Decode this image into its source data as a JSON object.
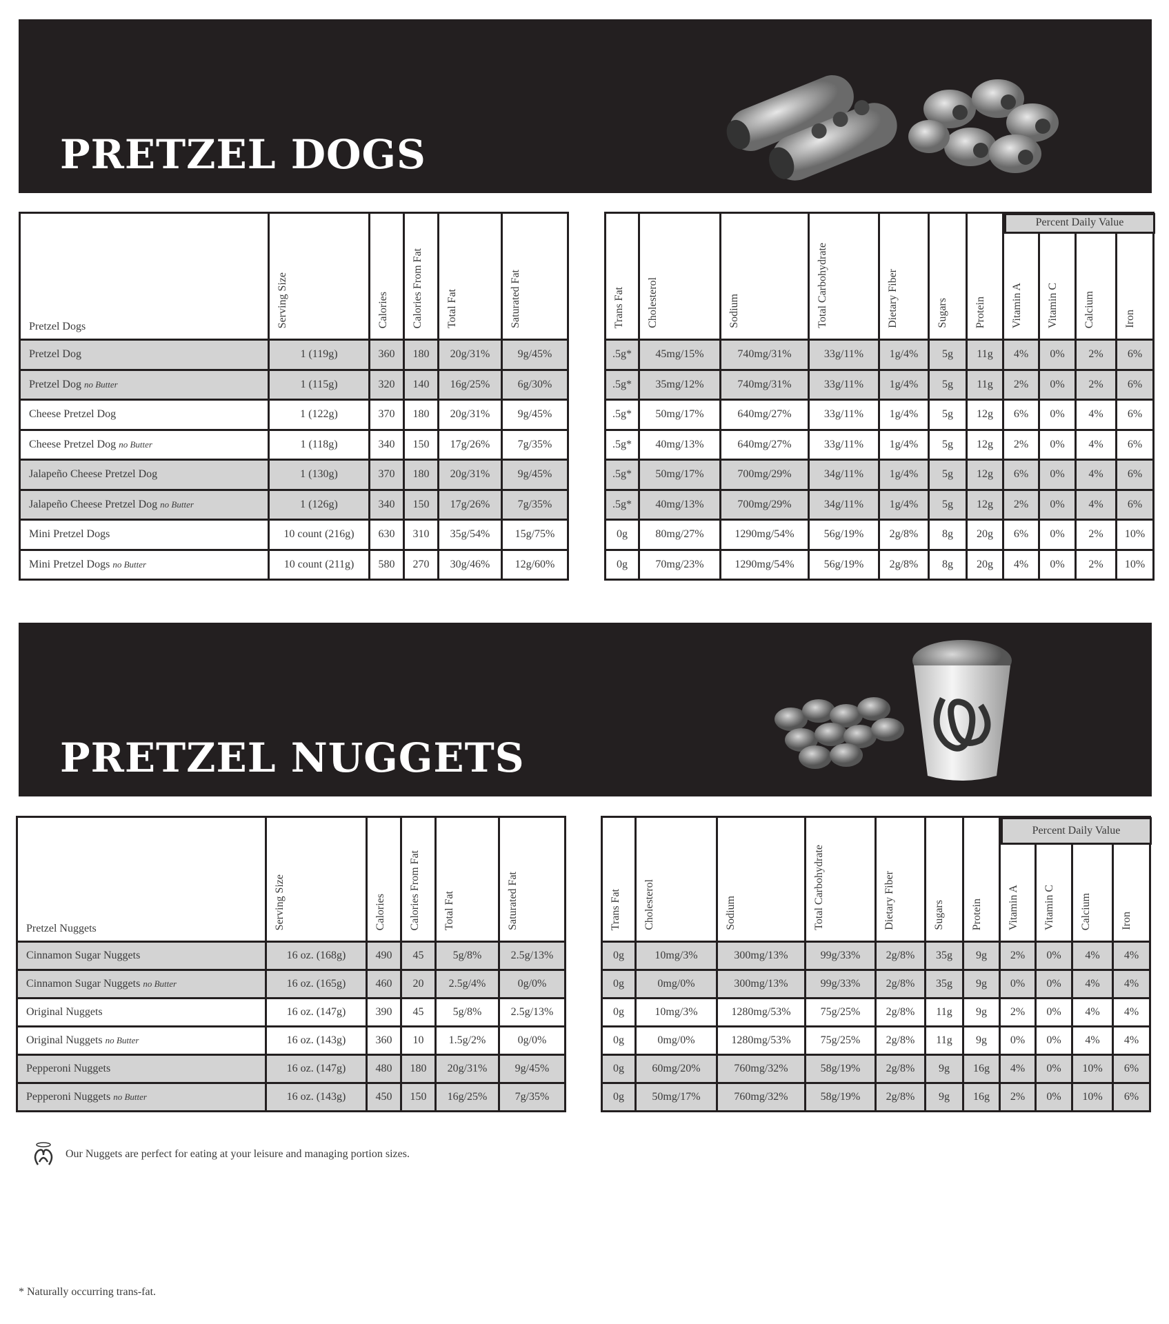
{
  "sections": [
    {
      "title": "PRETZEL DOGS",
      "name_header": "Pretzel Dogs",
      "percent_daily_value": "Percent Daily Value",
      "left_columns": [
        "Serving Size",
        "Calories",
        "Calories From Fat",
        "Total Fat",
        "Saturated Fat"
      ],
      "right_columns": [
        "Trans Fat",
        "Cholesterol",
        "Sodium",
        "Total Carbohydrate",
        "Dietary Fiber",
        "Sugars",
        "Protein",
        "Vitamin A",
        "Vitamin C",
        "Calcium",
        "Iron"
      ],
      "rows": [
        {
          "name": "Pretzel Dog",
          "suffix": "",
          "left": [
            "1 (119g)",
            "360",
            "180",
            "20g/31%",
            "9g/45%"
          ],
          "right": [
            ".5g*",
            "45mg/15%",
            "740mg/31%",
            "33g/11%",
            "1g/4%",
            "5g",
            "11g",
            "4%",
            "0%",
            "2%",
            "6%"
          ]
        },
        {
          "name": "Pretzel Dog",
          "suffix": "no Butter",
          "left": [
            "1 (115g)",
            "320",
            "140",
            "16g/25%",
            "6g/30%"
          ],
          "right": [
            ".5g*",
            "35mg/12%",
            "740mg/31%",
            "33g/11%",
            "1g/4%",
            "5g",
            "11g",
            "2%",
            "0%",
            "2%",
            "6%"
          ]
        },
        {
          "name": "Cheese Pretzel Dog",
          "suffix": "",
          "left": [
            "1 (122g)",
            "370",
            "180",
            "20g/31%",
            "9g/45%"
          ],
          "right": [
            ".5g*",
            "50mg/17%",
            "640mg/27%",
            "33g/11%",
            "1g/4%",
            "5g",
            "12g",
            "6%",
            "0%",
            "4%",
            "6%"
          ]
        },
        {
          "name": "Cheese Pretzel Dog",
          "suffix": "no Butter",
          "left": [
            "1 (118g)",
            "340",
            "150",
            "17g/26%",
            "7g/35%"
          ],
          "right": [
            ".5g*",
            "40mg/13%",
            "640mg/27%",
            "33g/11%",
            "1g/4%",
            "5g",
            "12g",
            "2%",
            "0%",
            "4%",
            "6%"
          ]
        },
        {
          "name": "Jalapeño Cheese Pretzel Dog",
          "suffix": "",
          "left": [
            "1 (130g)",
            "370",
            "180",
            "20g/31%",
            "9g/45%"
          ],
          "right": [
            ".5g*",
            "50mg/17%",
            "700mg/29%",
            "34g/11%",
            "1g/4%",
            "5g",
            "12g",
            "6%",
            "0%",
            "4%",
            "6%"
          ]
        },
        {
          "name": "Jalapeño Cheese Pretzel Dog",
          "suffix": "no Butter",
          "left": [
            "1 (126g)",
            "340",
            "150",
            "17g/26%",
            "7g/35%"
          ],
          "right": [
            ".5g*",
            "40mg/13%",
            "700mg/29%",
            "34g/11%",
            "1g/4%",
            "5g",
            "12g",
            "2%",
            "0%",
            "4%",
            "6%"
          ]
        },
        {
          "name": "Mini Pretzel Dogs",
          "suffix": "",
          "left": [
            "10 count (216g)",
            "630",
            "310",
            "35g/54%",
            "15g/75%"
          ],
          "right": [
            "0g",
            "80mg/27%",
            "1290mg/54%",
            "56g/19%",
            "2g/8%",
            "8g",
            "20g",
            "6%",
            "0%",
            "2%",
            "10%"
          ]
        },
        {
          "name": "Mini Pretzel Dogs",
          "suffix": "no Butter",
          "left": [
            "10 count (211g)",
            "580",
            "270",
            "30g/46%",
            "12g/60%"
          ],
          "right": [
            "0g",
            "70mg/23%",
            "1290mg/54%",
            "56g/19%",
            "2g/8%",
            "8g",
            "20g",
            "4%",
            "0%",
            "2%",
            "10%"
          ]
        }
      ]
    },
    {
      "title": "PRETZEL NUGGETS",
      "name_header": "Pretzel Nuggets",
      "percent_daily_value": "Percent Daily Value",
      "left_columns": [
        "Serving Size",
        "Calories",
        "Calories From Fat",
        "Total Fat",
        "Saturated Fat"
      ],
      "right_columns": [
        "Trans Fat",
        "Cholesterol",
        "Sodium",
        "Total Carbohydrate",
        "Dietary Fiber",
        "Sugars",
        "Protein",
        "Vitamin A",
        "Vitamin C",
        "Calcium",
        "Iron"
      ],
      "rows": [
        {
          "name": "Cinnamon Sugar Nuggets",
          "suffix": "",
          "left": [
            "16 oz. (168g)",
            "490",
            "45",
            "5g/8%",
            "2.5g/13%"
          ],
          "right": [
            "0g",
            "10mg/3%",
            "300mg/13%",
            "99g/33%",
            "2g/8%",
            "35g",
            "9g",
            "2%",
            "0%",
            "4%",
            "4%"
          ]
        },
        {
          "name": "Cinnamon Sugar Nuggets",
          "suffix": "no Butter",
          "left": [
            "16 oz. (165g)",
            "460",
            "20",
            "2.5g/4%",
            "0g/0%"
          ],
          "right": [
            "0g",
            "0mg/0%",
            "300mg/13%",
            "99g/33%",
            "2g/8%",
            "35g",
            "9g",
            "0%",
            "0%",
            "4%",
            "4%"
          ]
        },
        {
          "name": "Original Nuggets",
          "suffix": "",
          "left": [
            "16 oz. (147g)",
            "390",
            "45",
            "5g/8%",
            "2.5g/13%"
          ],
          "right": [
            "0g",
            "10mg/3%",
            "1280mg/53%",
            "75g/25%",
            "2g/8%",
            "11g",
            "9g",
            "2%",
            "0%",
            "4%",
            "4%"
          ]
        },
        {
          "name": "Original Nuggets",
          "suffix": "no Butter",
          "left": [
            "16 oz. (143g)",
            "360",
            "10",
            "1.5g/2%",
            "0g/0%"
          ],
          "right": [
            "0g",
            "0mg/0%",
            "1280mg/53%",
            "75g/25%",
            "2g/8%",
            "11g",
            "9g",
            "0%",
            "0%",
            "4%",
            "4%"
          ]
        },
        {
          "name": "Pepperoni Nuggets",
          "suffix": "",
          "left": [
            "16 oz. (147g)",
            "480",
            "180",
            "20g/31%",
            "9g/45%"
          ],
          "right": [
            "0g",
            "60mg/20%",
            "760mg/32%",
            "58g/19%",
            "2g/8%",
            "9g",
            "16g",
            "4%",
            "0%",
            "10%",
            "6%"
          ]
        },
        {
          "name": "Pepperoni Nuggets",
          "suffix": "no Butter",
          "left": [
            "16 oz. (143g)",
            "450",
            "150",
            "16g/25%",
            "7g/35%"
          ],
          "right": [
            "0g",
            "50mg/17%",
            "760mg/32%",
            "58g/19%",
            "2g/8%",
            "9g",
            "16g",
            "2%",
            "0%",
            "10%",
            "6%"
          ]
        }
      ]
    }
  ],
  "nuggets_note": "Our Nuggets are perfect for eating at your leisure and managing portion sizes.",
  "footnote": "* Naturally occurring trans-fat.",
  "colors": {
    "banner": "#231f20",
    "shaded_row": "#d3d3d3",
    "border": "#231f20"
  }
}
